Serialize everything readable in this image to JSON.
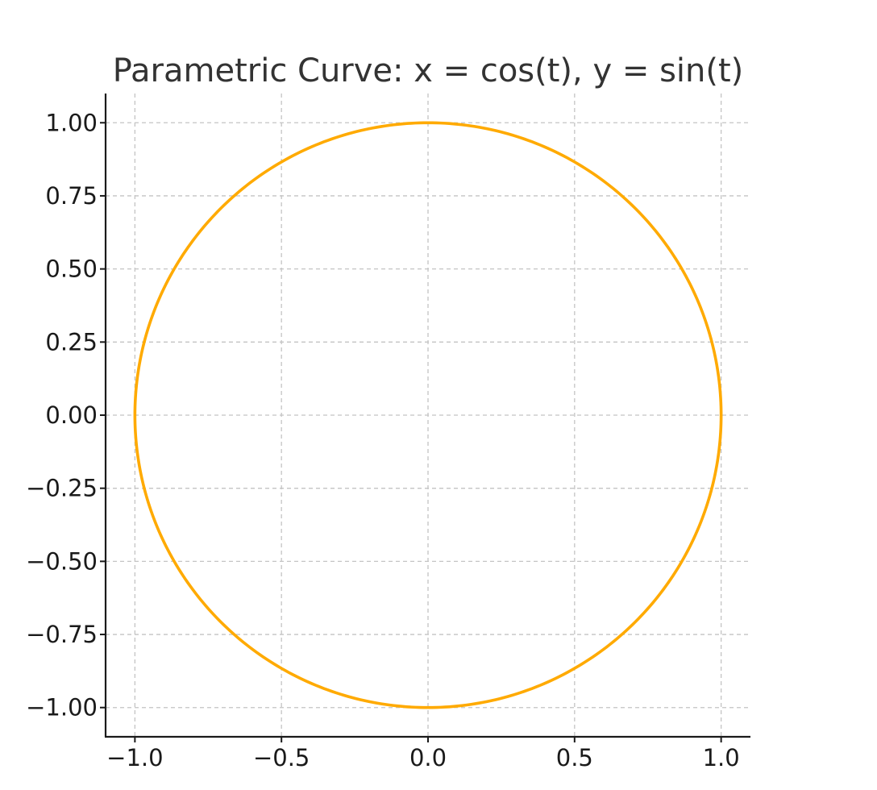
{
  "chart_data": {
    "type": "line",
    "title": "Parametric Curve: x = cos(t), y = sin(t)",
    "xlabel": "",
    "ylabel": "",
    "xlim": [
      -1.1,
      1.1
    ],
    "ylim": [
      -1.1,
      1.1
    ],
    "x_ticks": [
      -1.0,
      -0.5,
      0.0,
      0.5,
      1.0
    ],
    "x_tick_labels": [
      "−1.0",
      "−0.5",
      "0.0",
      "0.5",
      "1.0"
    ],
    "y_ticks": [
      1.0,
      0.75,
      0.5,
      0.25,
      0.0,
      -0.25,
      -0.5,
      -0.75,
      -1.0
    ],
    "y_tick_labels": [
      "1.00",
      "0.75",
      "0.50",
      "0.25",
      "0.00",
      "−0.25",
      "−0.50",
      "−0.75",
      "−1.00"
    ],
    "grid": true,
    "series": [
      {
        "color": "#FFAA00",
        "x": [
          1.0,
          0.9848,
          0.9397,
          0.866,
          0.766,
          0.6428,
          0.5,
          0.342,
          0.1736,
          0.0,
          -0.1736,
          -0.342,
          -0.5,
          -0.6428,
          -0.766,
          -0.866,
          -0.9397,
          -0.9848,
          -1.0,
          -0.9848,
          -0.9397,
          -0.866,
          -0.766,
          -0.6428,
          -0.5,
          -0.342,
          -0.1736,
          0.0,
          0.1736,
          0.342,
          0.5,
          0.6428,
          0.766,
          0.866,
          0.9397,
          0.9848,
          1.0
        ],
        "y": [
          0.0,
          0.1736,
          0.342,
          0.5,
          0.6428,
          0.766,
          0.866,
          0.9397,
          0.9848,
          1.0,
          0.9848,
          0.9397,
          0.866,
          0.766,
          0.6428,
          0.5,
          0.342,
          0.1736,
          0.0,
          -0.1736,
          -0.342,
          -0.5,
          -0.6428,
          -0.766,
          -0.866,
          -0.9397,
          -0.9848,
          -1.0,
          -0.9848,
          -0.9397,
          -0.866,
          -0.766,
          -0.6428,
          -0.5,
          -0.342,
          -0.1736,
          0.0
        ]
      }
    ]
  }
}
